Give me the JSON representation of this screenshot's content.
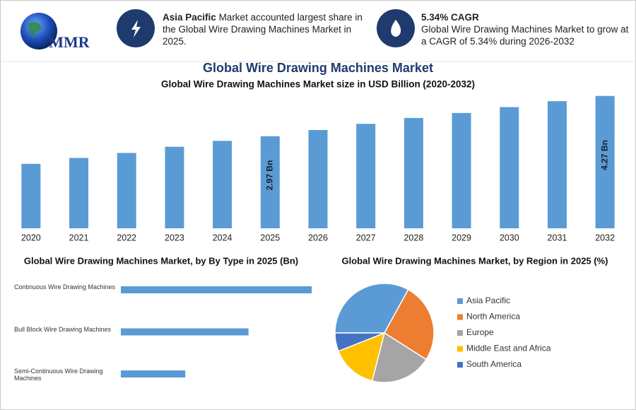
{
  "header": {
    "logo": "MMR",
    "info_1": {
      "highlight": "Asia Pacific",
      "text": "Market accounted largest share in the Global Wire Drawing Machines Market in 2025."
    },
    "info_2": {
      "highlight": "5.34% CAGR",
      "text": "Global Wire Drawing Machines Market to grow at a CAGR of 5.34% during 2026-2032"
    }
  },
  "chart_data": [
    {
      "type": "bar",
      "title": "Global Wire Drawing Machines Market",
      "subtitle": "Global Wire Drawing Machines Market size in USD Billion (2020-2032)",
      "categories": [
        "2020",
        "2021",
        "2022",
        "2023",
        "2024",
        "2025",
        "2026",
        "2027",
        "2028",
        "2029",
        "2030",
        "2031",
        "2032"
      ],
      "values": [
        2.08,
        2.27,
        2.43,
        2.63,
        2.82,
        2.97,
        3.17,
        3.37,
        3.56,
        3.72,
        3.91,
        4.1,
        4.27
      ],
      "value_labels": [
        null,
        null,
        null,
        null,
        null,
        "2.97 Bn",
        null,
        null,
        null,
        null,
        null,
        null,
        "4.27 Bn"
      ],
      "color": "#5b9bd5",
      "ylim": [
        0,
        4.4
      ]
    },
    {
      "type": "hbar",
      "title": "Global Wire Drawing Machines Market, by By Type in 2025 (Bn)",
      "categories": [
        "Continuous Wire Drawing Machines",
        "Bull Block Wire Drawing Machines",
        "Semi-Continuous Wire Drawing Machines"
      ],
      "values": [
        1.48,
        0.99,
        0.5
      ],
      "color": "#5b9bd5",
      "xlim": [
        0,
        1.6
      ]
    },
    {
      "type": "pie",
      "title": "Global Wire Drawing Machines Market, by Region in 2025 (%)",
      "categories": [
        "Asia Pacific",
        "North America",
        "Europe",
        "Middle East and Africa",
        "South America"
      ],
      "values": [
        33,
        26,
        20,
        15,
        6
      ],
      "colors": [
        "#5b9bd5",
        "#ed7d31",
        "#a5a5a5",
        "#ffc000",
        "#4472c4"
      ]
    }
  ]
}
